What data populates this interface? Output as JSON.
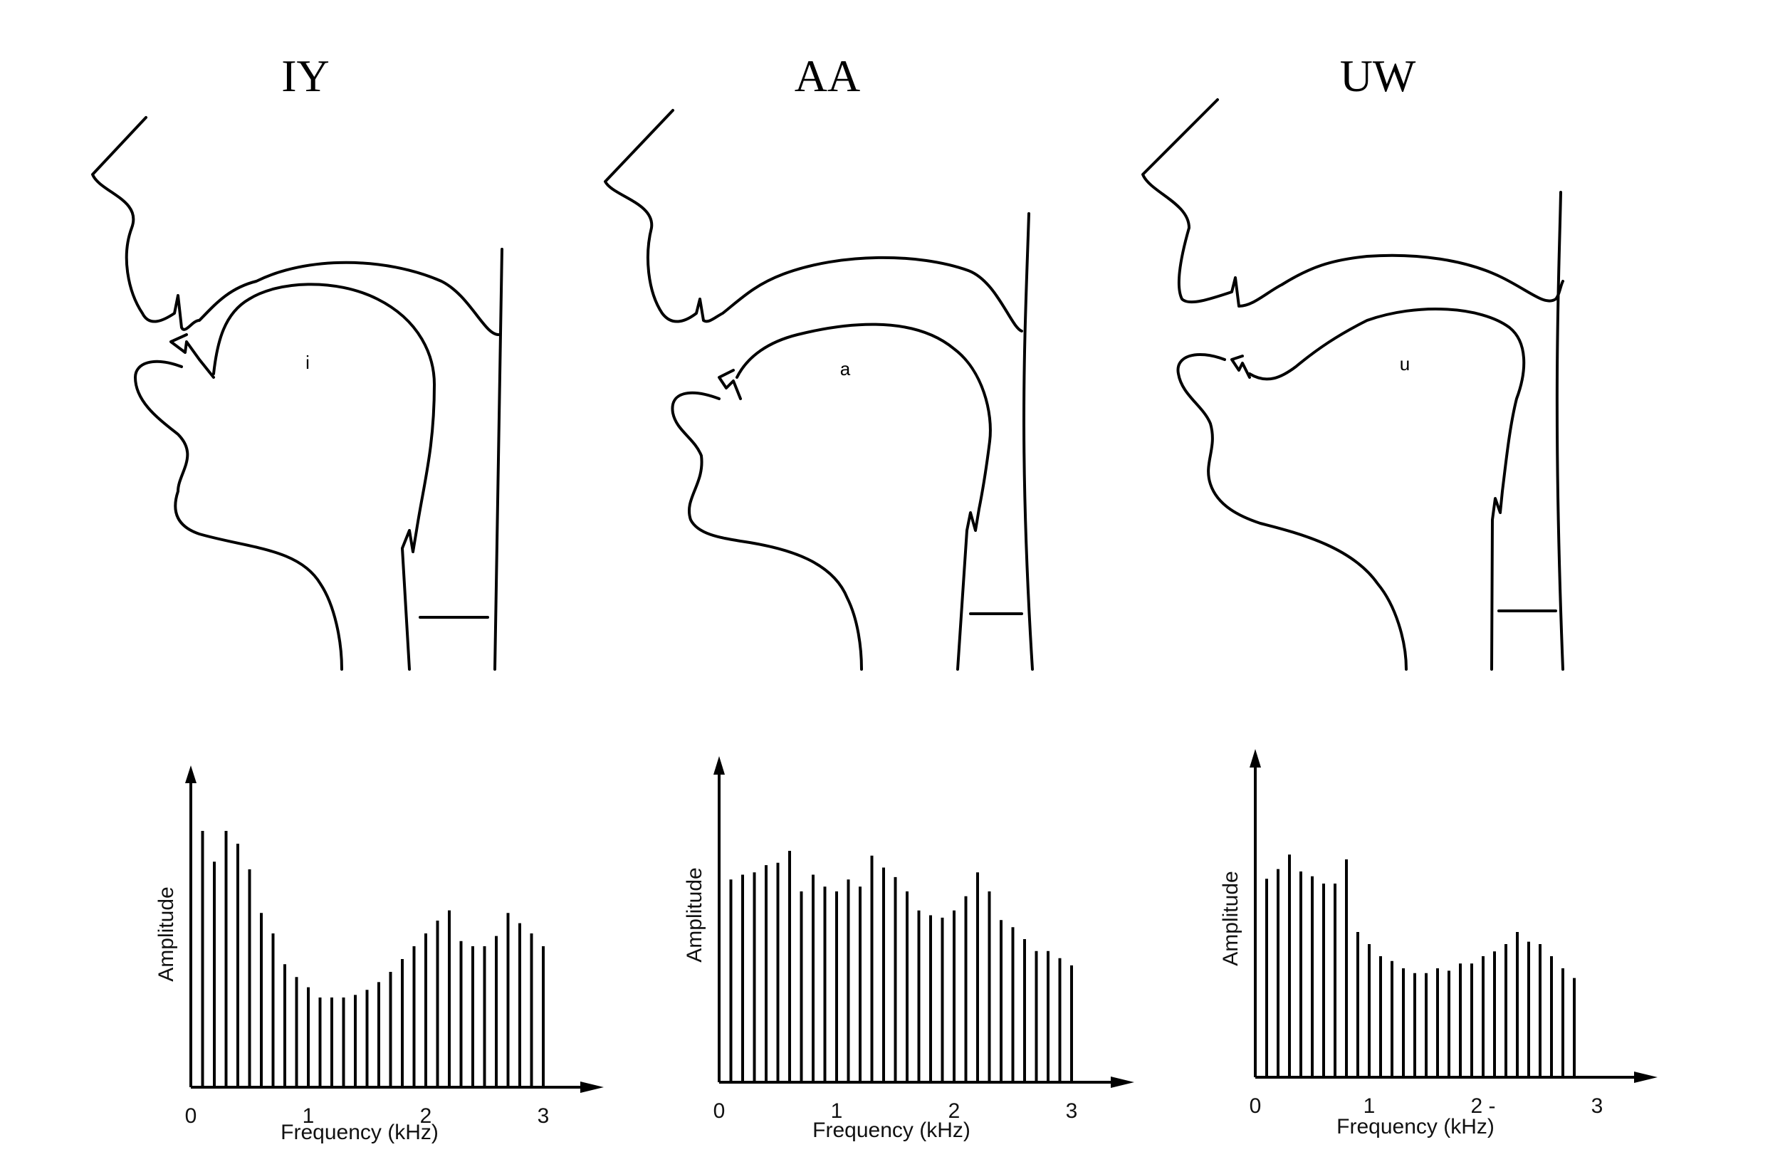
{
  "panels": [
    {
      "title": "IY",
      "vowel_symbol": "i",
      "chart_data": {
        "type": "bar",
        "x": [
          0.1,
          0.2,
          0.3,
          0.4,
          0.5,
          0.6,
          0.7,
          0.8,
          0.9,
          1.0,
          1.1,
          1.2,
          1.3,
          1.4,
          1.5,
          1.6,
          1.7,
          1.8,
          1.9,
          2.0,
          2.1,
          2.2,
          2.3,
          2.4,
          2.5,
          2.6,
          2.7,
          2.8,
          2.9,
          3.0
        ],
        "values": [
          1.0,
          0.88,
          1.0,
          0.95,
          0.85,
          0.68,
          0.6,
          0.48,
          0.43,
          0.39,
          0.35,
          0.35,
          0.35,
          0.36,
          0.38,
          0.41,
          0.45,
          0.5,
          0.55,
          0.6,
          0.65,
          0.69,
          0.57,
          0.55,
          0.55,
          0.59,
          0.68,
          0.64,
          0.6,
          0.55
        ],
        "xlabel": "Frequency (kHz)",
        "ylabel": "Amplitude",
        "xticks": [
          "0",
          "1",
          "2",
          "3"
        ],
        "xlim": [
          0,
          3.5
        ]
      }
    },
    {
      "title": "AA",
      "vowel_symbol": "a",
      "chart_data": {
        "type": "bar",
        "x": [
          0.1,
          0.2,
          0.3,
          0.4,
          0.5,
          0.6,
          0.7,
          0.8,
          0.9,
          1.0,
          1.1,
          1.2,
          1.3,
          1.4,
          1.5,
          1.6,
          1.7,
          1.8,
          1.9,
          2.0,
          2.1,
          2.2,
          2.3,
          2.4,
          2.5,
          2.6,
          2.7,
          2.8,
          2.9,
          3.0
        ],
        "values": [
          0.85,
          0.87,
          0.88,
          0.91,
          0.92,
          0.97,
          0.8,
          0.87,
          0.82,
          0.8,
          0.85,
          0.82,
          0.95,
          0.9,
          0.86,
          0.8,
          0.72,
          0.7,
          0.69,
          0.72,
          0.78,
          0.88,
          0.8,
          0.68,
          0.65,
          0.6,
          0.55,
          0.55,
          0.52,
          0.49
        ],
        "xlabel": "Frequency (kHz)",
        "ylabel": "Amplitude",
        "xticks": [
          "0",
          "1",
          "2",
          "3"
        ],
        "xlim": [
          0,
          3.5
        ]
      }
    },
    {
      "title": "UW",
      "vowel_symbol": "u",
      "chart_data": {
        "type": "bar",
        "x": [
          0.1,
          0.2,
          0.3,
          0.4,
          0.5,
          0.6,
          0.7,
          0.8,
          0.9,
          1.0,
          1.1,
          1.2,
          1.3,
          1.4,
          1.5,
          1.6,
          1.7,
          1.8,
          1.9,
          2.0,
          2.1,
          2.2,
          2.3,
          2.4,
          2.5,
          2.6,
          2.7,
          2.8
        ],
        "values": [
          0.82,
          0.86,
          0.92,
          0.85,
          0.83,
          0.8,
          0.8,
          0.9,
          0.6,
          0.55,
          0.5,
          0.48,
          0.45,
          0.43,
          0.43,
          0.45,
          0.44,
          0.47,
          0.47,
          0.5,
          0.52,
          0.55,
          0.6,
          0.56,
          0.55,
          0.5,
          0.45,
          0.41
        ],
        "xlabel": "Frequency (kHz)",
        "ylabel": "Amplitude",
        "xticks": [
          "0",
          "1",
          "2 -",
          "3"
        ],
        "xlim": [
          0,
          3.5
        ]
      }
    }
  ]
}
